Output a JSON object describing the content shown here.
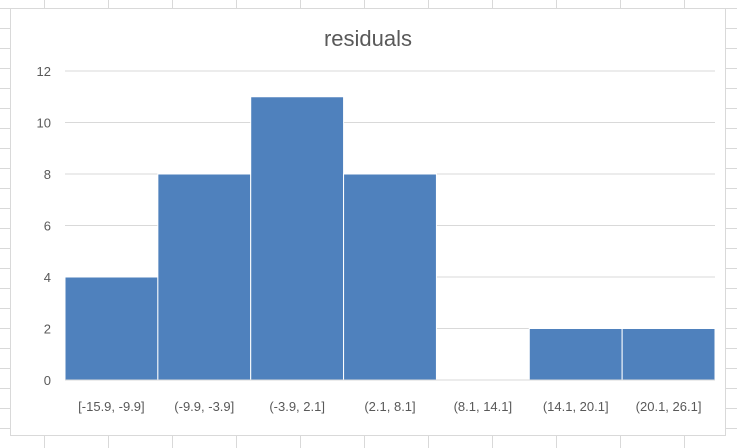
{
  "chart_data": {
    "type": "bar",
    "title": "residuals",
    "xlabel": "",
    "ylabel": "",
    "categories": [
      "[-15.9, -9.9]",
      "(-9.9, -3.9]",
      "(-3.9, 2.1]",
      "(2.1, 8.1]",
      "(8.1, 14.1]",
      "(14.1, 20.1]",
      "(20.1, 26.1]"
    ],
    "values": [
      4,
      8,
      11,
      8,
      0,
      2,
      2
    ],
    "ylim": [
      0,
      12
    ],
    "yticks": [
      0,
      2,
      4,
      6,
      8,
      10,
      12
    ],
    "grid": true,
    "legend": "none",
    "bar_color": "#4f81bd",
    "grid_color": "#d9d9d9"
  }
}
